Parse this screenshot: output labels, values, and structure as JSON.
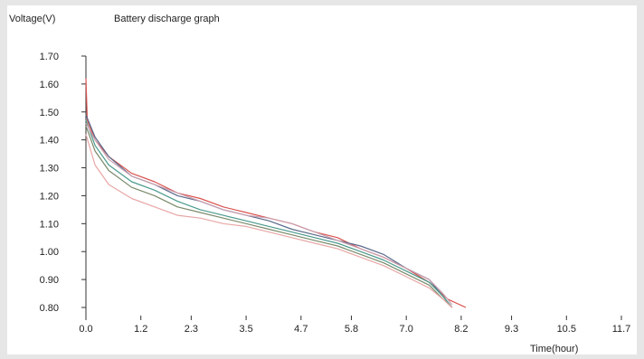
{
  "chart_data": {
    "type": "line",
    "title": "Battery discharge graph",
    "ylabel": "Voltage(V)",
    "xlabel": "Time(hour)",
    "xlim": [
      0.0,
      11.7
    ],
    "ylim": [
      0.8,
      1.7
    ],
    "x_ticks": [
      "0.0",
      "1.2",
      "2.3",
      "3.5",
      "4.7",
      "5.8",
      "7.0",
      "8.2",
      "9.3",
      "10.5",
      "11.7"
    ],
    "y_ticks": [
      "1.70",
      "1.60",
      "1.50",
      "1.40",
      "1.30",
      "1.20",
      "1.10",
      "1.00",
      "0.90",
      "0.80"
    ],
    "grid": false,
    "series": [
      {
        "color": "#d9534f",
        "x": [
          0.0,
          0.03,
          0.2,
          0.5,
          1.0,
          1.5,
          2.0,
          2.5,
          3.0,
          3.5,
          4.0,
          4.5,
          5.0,
          5.5,
          6.0,
          6.5,
          7.0,
          7.5,
          7.9,
          8.3
        ],
        "y": [
          1.62,
          1.47,
          1.4,
          1.34,
          1.28,
          1.25,
          1.21,
          1.19,
          1.16,
          1.14,
          1.12,
          1.1,
          1.07,
          1.05,
          1.01,
          0.98,
          0.94,
          0.89,
          0.83,
          0.8
        ]
      },
      {
        "color": "#5b6b8c",
        "x": [
          0.0,
          0.2,
          0.5,
          1.0,
          1.5,
          2.0,
          2.5,
          3.0,
          3.5,
          4.0,
          4.5,
          5.0,
          5.5,
          6.0,
          6.5,
          7.0,
          7.5,
          7.8,
          8.0
        ],
        "y": [
          1.49,
          1.41,
          1.34,
          1.27,
          1.24,
          1.2,
          1.18,
          1.15,
          1.13,
          1.11,
          1.08,
          1.06,
          1.04,
          1.02,
          0.99,
          0.94,
          0.9,
          0.84,
          0.8
        ]
      },
      {
        "color": "#4a9a8c",
        "x": [
          0.0,
          0.2,
          0.5,
          1.0,
          1.5,
          2.0,
          2.5,
          3.0,
          3.5,
          4.0,
          4.5,
          5.0,
          5.5,
          6.0,
          6.5,
          7.0,
          7.5,
          7.8,
          8.0
        ],
        "y": [
          1.47,
          1.38,
          1.31,
          1.25,
          1.22,
          1.18,
          1.15,
          1.13,
          1.11,
          1.09,
          1.07,
          1.05,
          1.03,
          1.0,
          0.97,
          0.93,
          0.89,
          0.84,
          0.8
        ]
      },
      {
        "color": "#7a8a6a",
        "x": [
          0.0,
          0.2,
          0.5,
          1.0,
          1.5,
          2.0,
          2.5,
          3.0,
          3.5,
          4.0,
          4.5,
          5.0,
          5.5,
          6.0,
          6.5,
          7.0,
          7.5,
          7.8,
          8.0
        ],
        "y": [
          1.45,
          1.36,
          1.29,
          1.23,
          1.2,
          1.16,
          1.14,
          1.12,
          1.1,
          1.08,
          1.06,
          1.04,
          1.02,
          0.99,
          0.96,
          0.92,
          0.88,
          0.83,
          0.8
        ]
      },
      {
        "color": "#c9a0b0",
        "x": [
          0.0,
          0.2,
          0.5,
          1.0,
          1.5,
          2.0,
          2.5,
          3.0,
          3.5,
          4.0,
          4.5,
          5.0,
          5.5,
          6.0,
          6.5,
          7.0,
          7.5,
          7.8,
          8.0
        ],
        "y": [
          1.46,
          1.4,
          1.33,
          1.27,
          1.24,
          1.21,
          1.18,
          1.15,
          1.13,
          1.12,
          1.1,
          1.07,
          1.04,
          1.01,
          0.98,
          0.94,
          0.9,
          0.85,
          0.81
        ]
      },
      {
        "color": "#e8a6a6",
        "x": [
          0.0,
          0.2,
          0.5,
          1.0,
          1.5,
          2.0,
          2.5,
          3.0,
          3.5,
          4.0,
          4.5,
          5.0,
          5.5,
          6.0,
          6.5,
          7.0,
          7.5,
          7.8,
          8.0
        ],
        "y": [
          1.42,
          1.31,
          1.24,
          1.19,
          1.16,
          1.13,
          1.12,
          1.1,
          1.09,
          1.07,
          1.05,
          1.03,
          1.01,
          0.98,
          0.95,
          0.91,
          0.87,
          0.83,
          0.8
        ]
      }
    ]
  }
}
